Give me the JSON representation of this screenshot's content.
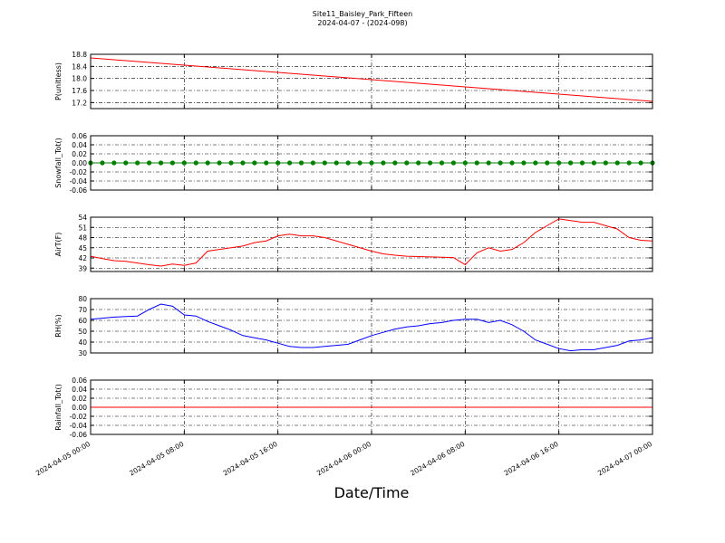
{
  "title": "Site11_Baisley_Park_Fifteen",
  "subtitle": "2024-04-07 - (2024-098)",
  "xlabel": "Date/Time",
  "x": [
    "2024-04-05 00:00",
    "2024-04-05 01:00",
    "2024-04-05 02:00",
    "2024-04-05 03:00",
    "2024-04-05 04:00",
    "2024-04-05 05:00",
    "2024-04-05 06:00",
    "2024-04-05 07:00",
    "2024-04-05 08:00",
    "2024-04-05 09:00",
    "2024-04-05 10:00",
    "2024-04-05 11:00",
    "2024-04-05 12:00",
    "2024-04-05 13:00",
    "2024-04-05 14:00",
    "2024-04-05 15:00",
    "2024-04-05 16:00",
    "2024-04-05 17:00",
    "2024-04-05 18:00",
    "2024-04-05 19:00",
    "2024-04-05 20:00",
    "2024-04-05 21:00",
    "2024-04-05 22:00",
    "2024-04-05 23:00",
    "2024-04-06 00:00",
    "2024-04-06 01:00",
    "2024-04-06 02:00",
    "2024-04-06 03:00",
    "2024-04-06 04:00",
    "2024-04-06 05:00",
    "2024-04-06 06:00",
    "2024-04-06 07:00",
    "2024-04-06 08:00",
    "2024-04-06 09:00",
    "2024-04-06 10:00",
    "2024-04-06 11:00",
    "2024-04-06 12:00",
    "2024-04-06 13:00",
    "2024-04-06 14:00",
    "2024-04-06 15:00",
    "2024-04-06 16:00",
    "2024-04-06 17:00",
    "2024-04-06 18:00",
    "2024-04-06 19:00",
    "2024-04-06 20:00",
    "2024-04-06 21:00",
    "2024-04-06 22:00",
    "2024-04-06 23:00",
    "2024-04-07 00:00"
  ],
  "xlim": [
    "2024-04-05 00:00",
    "2024-04-07 00:00"
  ],
  "xticks": [
    "2024-04-05 00:00",
    "2024-04-05 08:00",
    "2024-04-05 16:00",
    "2024-04-06 00:00",
    "2024-04-06 08:00",
    "2024-04-06 16:00",
    "2024-04-07 00:00"
  ],
  "grid": true,
  "chart_data": [
    {
      "type": "line",
      "ylabel": "P(unitless)",
      "ylim": [
        17.0,
        18.8
      ],
      "yticks": [
        17.2,
        17.6,
        {
          "value": 18.0,
          "label": "18.0"
        },
        18.4,
        18.8
      ],
      "series": [
        {
          "color": "#ff0000",
          "marker": false,
          "values": [
            18.68,
            18.65,
            18.62,
            18.59,
            18.56,
            18.53,
            18.5,
            18.47,
            18.44,
            18.41,
            18.38,
            18.35,
            18.32,
            18.29,
            18.26,
            18.23,
            18.2,
            18.17,
            18.14,
            18.11,
            18.08,
            18.05,
            18.02,
            17.99,
            17.96,
            17.93,
            17.9,
            17.87,
            17.84,
            17.81,
            17.78,
            17.75,
            17.72,
            17.69,
            17.66,
            17.63,
            17.6,
            17.57,
            17.54,
            17.51,
            17.48,
            17.45,
            17.42,
            17.39,
            17.36,
            17.33,
            17.3,
            17.27,
            17.24
          ]
        }
      ]
    },
    {
      "type": "line",
      "ylabel": "Snowfall_Tot()",
      "ylim": [
        -0.06,
        0.06
      ],
      "yticks": [
        -0.06,
        -0.04,
        -0.02,
        {
          "value": 0,
          "label": "0.00"
        },
        0.02,
        0.04,
        0.06
      ],
      "series": [
        {
          "color": "#008000",
          "marker": true,
          "values": [
            0,
            0,
            0,
            0,
            0,
            0,
            0,
            0,
            0,
            0,
            0,
            0,
            0,
            0,
            0,
            0,
            0,
            0,
            0,
            0,
            0,
            0,
            0,
            0,
            0,
            0,
            0,
            0,
            0,
            0,
            0,
            0,
            0,
            0,
            0,
            0,
            0,
            0,
            0,
            0,
            0,
            0,
            0,
            0,
            0,
            0,
            0,
            0,
            0
          ]
        }
      ]
    },
    {
      "type": "line",
      "ylabel": "AirT(F)",
      "ylim": [
        38,
        54
      ],
      "yticks": [
        39,
        42,
        45,
        48,
        51,
        54
      ],
      "series": [
        {
          "color": "#ff0000",
          "marker": false,
          "values": [
            42.5,
            41.8,
            41.2,
            41,
            40.5,
            40,
            39.6,
            40.2,
            39.8,
            40.5,
            44,
            44.5,
            45,
            45.5,
            46.5,
            47,
            48.5,
            49,
            48.5,
            48.5,
            48,
            47,
            46,
            45,
            44,
            43.2,
            42.8,
            42.5,
            42.4,
            42.3,
            42.2,
            42.1,
            40,
            43.5,
            45,
            44,
            44.5,
            46.5,
            49.5,
            51.5,
            53.5,
            53,
            52.5,
            52.5,
            51.5,
            50.5,
            48,
            47.2,
            47
          ]
        }
      ]
    },
    {
      "type": "line",
      "ylabel": "RH(%)",
      "ylim": [
        30,
        80
      ],
      "yticks": [
        30,
        40,
        50,
        60,
        70,
        80
      ],
      "series": [
        {
          "color": "#0000ff",
          "marker": false,
          "values": [
            61,
            62,
            63,
            63.5,
            64,
            70,
            75,
            73,
            65,
            64,
            59,
            55,
            51,
            46,
            44,
            42,
            39,
            36,
            35,
            35,
            36,
            37,
            38,
            42,
            46,
            49,
            52,
            54,
            55,
            57,
            58,
            60,
            61,
            61,
            58,
            60,
            56,
            50,
            42,
            38,
            34,
            32,
            33,
            33,
            35,
            37,
            41,
            42,
            44
          ]
        }
      ]
    },
    {
      "type": "line",
      "ylabel": "Rainfall_Tot()",
      "ylim": [
        -0.06,
        0.06
      ],
      "yticks": [
        -0.06,
        -0.04,
        -0.02,
        {
          "value": 0,
          "label": "0.00"
        },
        0.02,
        0.04,
        0.06
      ],
      "series": [
        {
          "color": "#ff0000",
          "marker": false,
          "values": [
            0,
            0,
            0,
            0,
            0,
            0,
            0,
            0,
            0,
            0,
            0,
            0,
            0,
            0,
            0,
            0,
            0,
            0,
            0,
            0,
            0,
            0,
            0,
            0,
            0,
            0,
            0,
            0,
            0,
            0,
            0,
            0,
            0,
            0,
            0,
            0,
            0,
            0,
            0,
            0,
            0,
            0,
            0,
            0,
            0,
            0,
            0,
            0,
            0
          ]
        }
      ]
    }
  ]
}
